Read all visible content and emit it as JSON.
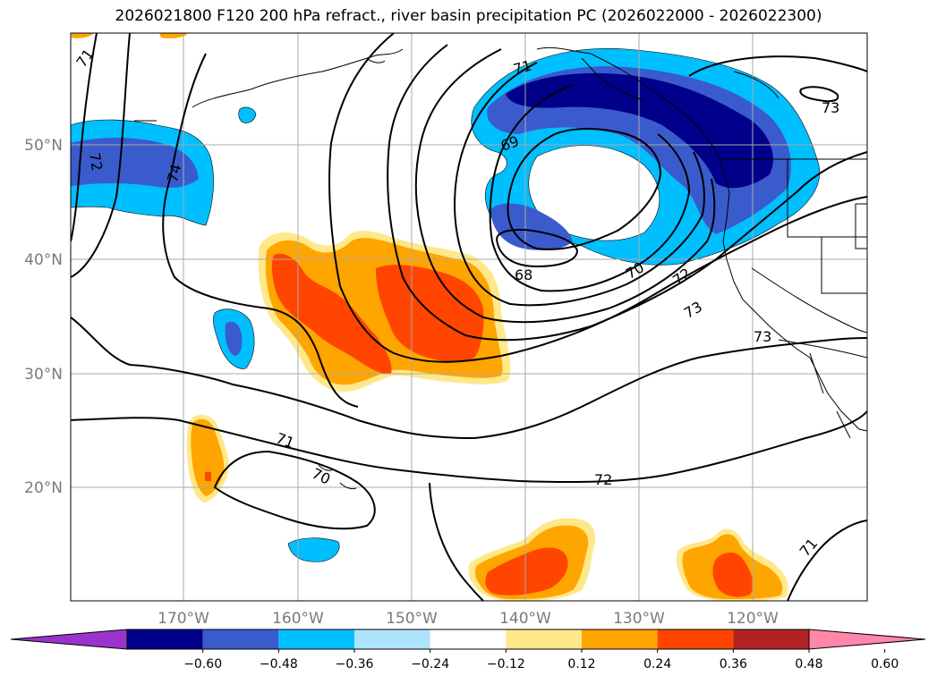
{
  "title": "2026021800 F120 200 hPa refract., river basin precipitation PC (2026022000 - 2026022300)",
  "map": {
    "lat_labels": [
      "50°N",
      "40°N",
      "30°N",
      "20°N"
    ],
    "lon_labels": [
      "170°W",
      "160°W",
      "150°W",
      "140°W",
      "130°W",
      "120°W"
    ],
    "contour_labels": [
      "71",
      "72",
      "74",
      "71",
      "69",
      "68",
      "70",
      "72",
      "73",
      "73",
      "71",
      "70",
      "72",
      "71",
      "73"
    ]
  },
  "colorbar": {
    "labels": [
      "−0.60",
      "−0.48",
      "−0.36",
      "−0.24",
      "−0.12",
      "0.12",
      "0.24",
      "0.36",
      "0.48",
      "0.60"
    ],
    "colors": [
      "#9933cc",
      "#00008b",
      "#3a5bcc",
      "#00bfff",
      "#aee4fb",
      "#ffffff",
      "#ffe88a",
      "#ffa500",
      "#ff4500",
      "#b22222",
      "#ff88aa"
    ]
  }
}
